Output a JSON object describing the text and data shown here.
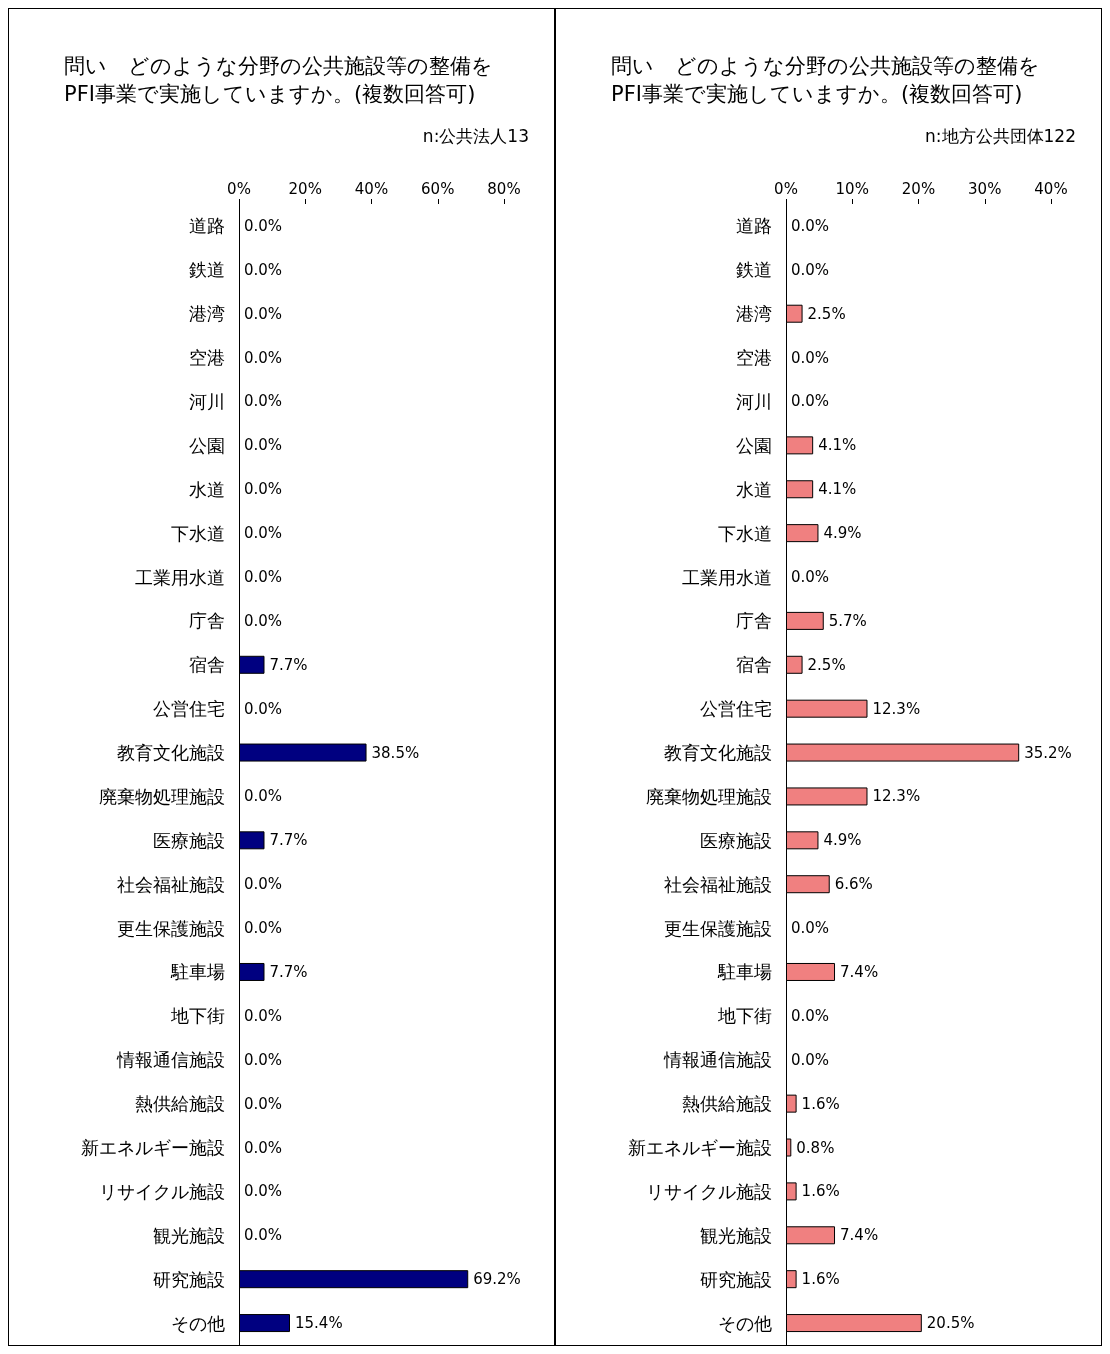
{
  "chart_data": [
    {
      "type": "bar",
      "orientation": "horizontal",
      "title": "問い　どのような分野の公共施設等の整備を\nPFI事業で実施していますか。(複数回答可)",
      "annotations": [
        "n:公共法人13"
      ],
      "categories": [
        "道路",
        "鉄道",
        "港湾",
        "空港",
        "河川",
        "公園",
        "水道",
        "下水道",
        "工業用水道",
        "庁舎",
        "宿舎",
        "公営住宅",
        "教育文化施設",
        "廃棄物処理施設",
        "医療施設",
        "社会福祉施設",
        "更生保護施設",
        "駐車場",
        "地下街",
        "情報通信施設",
        "熱供給施設",
        "新エネルギー施設",
        "リサイクル施設",
        "観光施設",
        "研究施設",
        "その他"
      ],
      "values": [
        0,
        0,
        0,
        0,
        0,
        0,
        0,
        0,
        0,
        0,
        7.7,
        0,
        38.5,
        0,
        7.7,
        0,
        0,
        7.7,
        0,
        0,
        0,
        0,
        0,
        0,
        69.2,
        15.4
      ],
      "value_labels": [
        "0.0%",
        "0.0%",
        "0.0%",
        "0.0%",
        "0.0%",
        "0.0%",
        "0.0%",
        "0.0%",
        "0.0%",
        "0.0%",
        "7.7%",
        "0.0%",
        "38.5%",
        "0.0%",
        "7.7%",
        "0.0%",
        "0.0%",
        "7.7%",
        "0.0%",
        "0.0%",
        "0.0%",
        "0.0%",
        "0.0%",
        "0.0%",
        "69.2%",
        "15.4%"
      ],
      "color": "#000080",
      "xlim": [
        0,
        80
      ],
      "xticks": [
        {
          "value": 0,
          "label": "0%"
        },
        {
          "value": 20,
          "label": "20%"
        },
        {
          "value": 40,
          "label": "40%"
        },
        {
          "value": 60,
          "label": "60%"
        },
        {
          "value": 80,
          "label": "80%"
        }
      ],
      "grid": false
    },
    {
      "type": "bar",
      "orientation": "horizontal",
      "title": "問い　どのような分野の公共施設等の整備を\nPFI事業で実施していますか。(複数回答可)",
      "annotations": [
        "n:地方公共団体122"
      ],
      "categories": [
        "道路",
        "鉄道",
        "港湾",
        "空港",
        "河川",
        "公園",
        "水道",
        "下水道",
        "工業用水道",
        "庁舎",
        "宿舎",
        "公営住宅",
        "教育文化施設",
        "廃棄物処理施設",
        "医療施設",
        "社会福祉施設",
        "更生保護施設",
        "駐車場",
        "地下街",
        "情報通信施設",
        "熱供給施設",
        "新エネルギー施設",
        "リサイクル施設",
        "観光施設",
        "研究施設",
        "その他"
      ],
      "values": [
        0,
        0,
        2.5,
        0,
        0,
        4.1,
        4.1,
        4.9,
        0,
        5.7,
        2.5,
        12.3,
        35.2,
        12.3,
        4.9,
        6.6,
        0,
        7.4,
        0,
        0,
        1.6,
        0.8,
        1.6,
        7.4,
        1.6,
        20.5
      ],
      "value_labels": [
        "0.0%",
        "0.0%",
        "2.5%",
        "0.0%",
        "0.0%",
        "4.1%",
        "4.1%",
        "4.9%",
        "0.0%",
        "5.7%",
        "2.5%",
        "12.3%",
        "35.2%",
        "12.3%",
        "4.9%",
        "6.6%",
        "0.0%",
        "7.4%",
        "0.0%",
        "0.0%",
        "1.6%",
        "0.8%",
        "1.6%",
        "7.4%",
        "1.6%",
        "20.5%"
      ],
      "color": "#f08080",
      "xlim": [
        0,
        40
      ],
      "xticks": [
        {
          "value": 0,
          "label": "0%"
        },
        {
          "value": 10,
          "label": "10%"
        },
        {
          "value": 20,
          "label": "20%"
        },
        {
          "value": 30,
          "label": "30%"
        },
        {
          "value": 40,
          "label": "40%"
        }
      ],
      "grid": false
    }
  ]
}
